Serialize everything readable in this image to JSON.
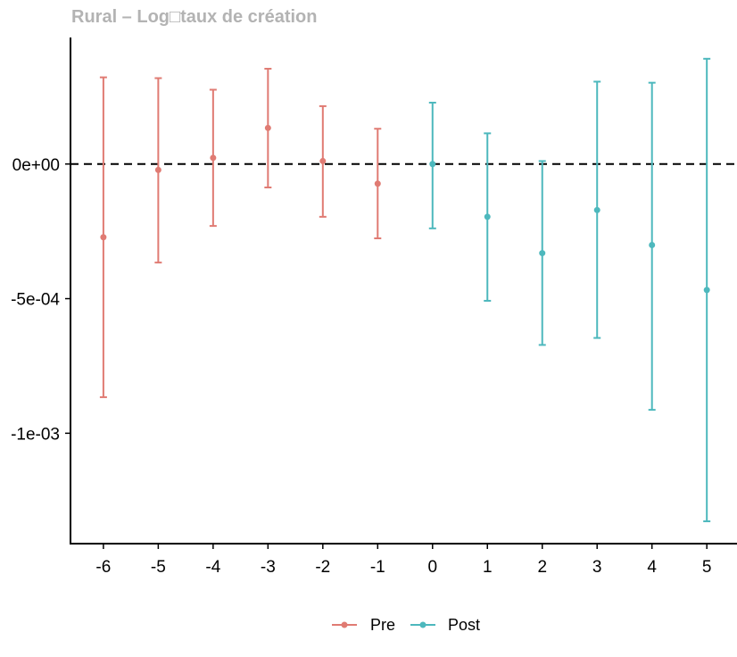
{
  "colors": {
    "pre": "#e07b73",
    "post": "#4db8bd",
    "axis": "#000000",
    "title": "#b3b3b3"
  },
  "chart_data": {
    "type": "scatter",
    "title": "Rural – Log□taux de création",
    "xlabel": "",
    "ylabel": "",
    "x_ticks": [
      "-6",
      "-5",
      "-4",
      "-3",
      "-2",
      "-1",
      "0",
      "1",
      "2",
      "3",
      "4",
      "5"
    ],
    "y_ticks": [
      {
        "value": 0,
        "label": "0e+00"
      },
      {
        "value": -0.0005,
        "label": "-5e-04"
      },
      {
        "value": -0.001,
        "label": "-1e-03"
      }
    ],
    "ylim": [
      -0.00141,
      0.00047
    ],
    "xlim": [
      -6.6,
      5.55
    ],
    "reference_line": {
      "y": 0,
      "style": "dashed"
    },
    "legend": {
      "position": "bottom",
      "entries": [
        "Pre",
        "Post"
      ]
    },
    "series": [
      {
        "name": "Pre",
        "points": [
          {
            "x": -6,
            "y": -0.000272,
            "lower": -0.000866,
            "upper": 0.000322
          },
          {
            "x": -5,
            "y": -2.2e-05,
            "lower": -0.000366,
            "upper": 0.000319
          },
          {
            "x": -4,
            "y": 2.3e-05,
            "lower": -0.00023,
            "upper": 0.000276
          },
          {
            "x": -3,
            "y": 0.000134,
            "lower": -8.7e-05,
            "upper": 0.000354
          },
          {
            "x": -2,
            "y": 1.1e-05,
            "lower": -0.000196,
            "upper": 0.000215
          },
          {
            "x": -1,
            "y": -7.3e-05,
            "lower": -0.000276,
            "upper": 0.000131
          }
        ]
      },
      {
        "name": "Post",
        "points": [
          {
            "x": 0,
            "y": 0.0,
            "lower": -0.000239,
            "upper": 0.000228
          },
          {
            "x": 1,
            "y": -0.000196,
            "lower": -0.000508,
            "upper": 0.000114
          },
          {
            "x": 2,
            "y": -0.000331,
            "lower": -0.000672,
            "upper": 1.1e-05
          },
          {
            "x": 3,
            "y": -0.000171,
            "lower": -0.000646,
            "upper": 0.000306
          },
          {
            "x": 4,
            "y": -0.000301,
            "lower": -0.000913,
            "upper": 0.000302
          },
          {
            "x": 5,
            "y": -0.000468,
            "lower": -0.001327,
            "upper": 0.000391
          }
        ]
      }
    ]
  }
}
